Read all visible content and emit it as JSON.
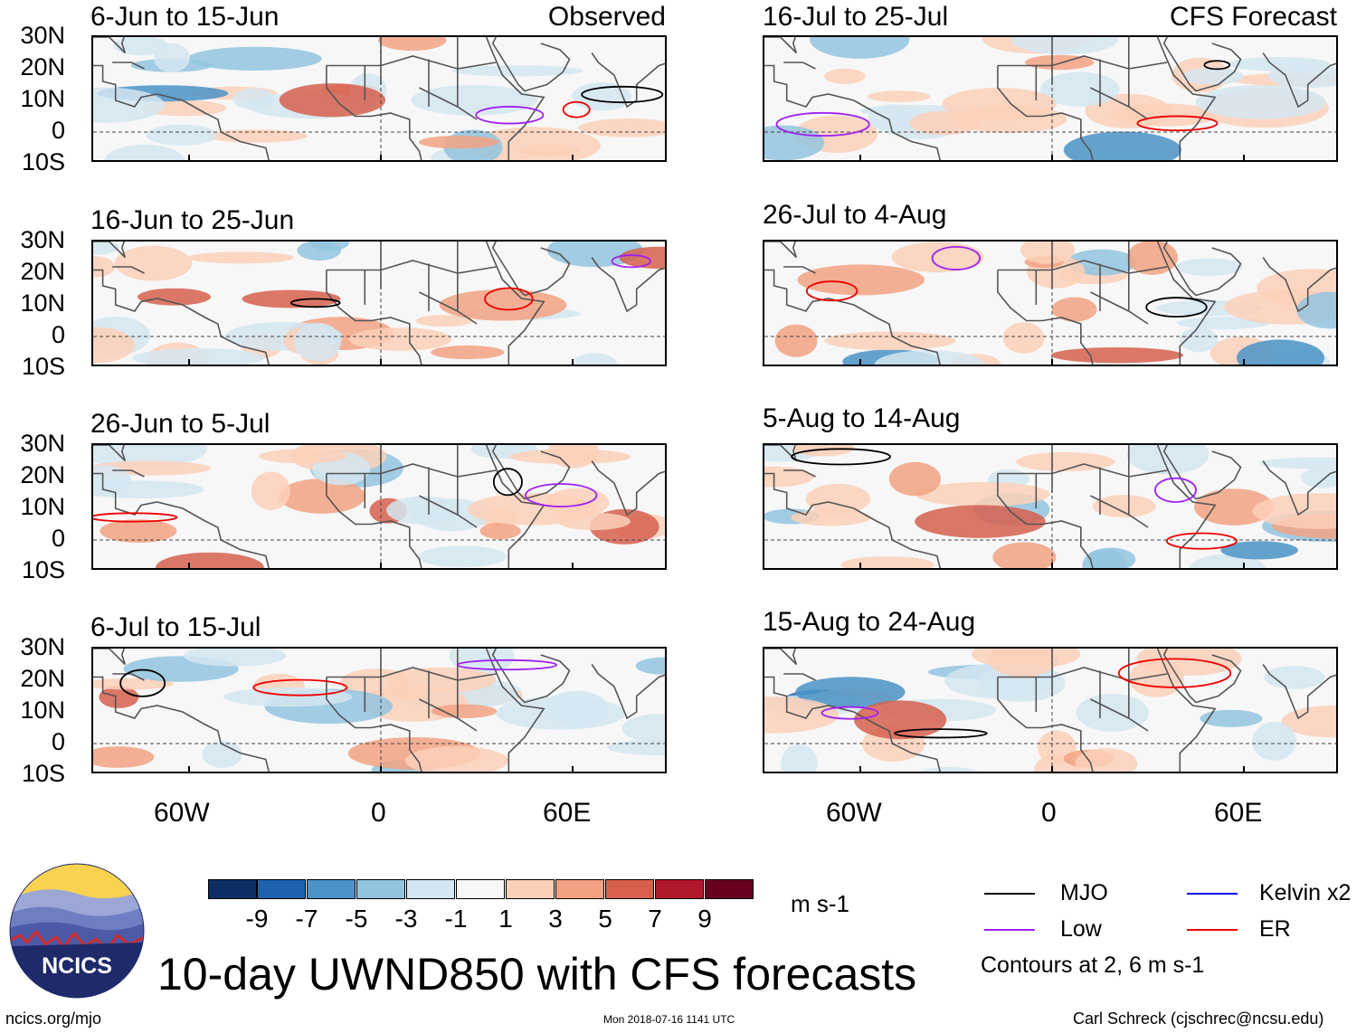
{
  "headers": {
    "left_tag": "Observed",
    "right_tag": "CFS Forecast"
  },
  "panels": {
    "observed": [
      "6-Jun to 15-Jun",
      "16-Jun to 25-Jun",
      "26-Jun to 5-Jul",
      "6-Jul to 15-Jul"
    ],
    "forecast": [
      "16-Jul to 25-Jul",
      "26-Jul to 4-Aug",
      "5-Aug to 14-Aug",
      "15-Aug to 24-Aug"
    ]
  },
  "axes": {
    "lat_labels": [
      "30N",
      "20N",
      "10N",
      "0",
      "10S"
    ],
    "lon_labels": [
      "60W",
      "0",
      "60E"
    ]
  },
  "colorbar": {
    "labels": [
      "-9",
      "-7",
      "-5",
      "-3",
      "-1",
      "1",
      "3",
      "5",
      "7",
      "9"
    ],
    "colors": [
      "#0b2f64",
      "#1e62ae",
      "#4a93c7",
      "#92c4df",
      "#d4e6f1",
      "#f7f7f7",
      "#fbd0b8",
      "#f2a283",
      "#d6604d",
      "#b2182b",
      "#67001f"
    ],
    "unit": "m s-1"
  },
  "legend": {
    "items": [
      {
        "label": "MJO",
        "color": "#000000"
      },
      {
        "label": "Kelvin x2",
        "color": "#0000ff"
      },
      {
        "label": "Low",
        "color": "#a020f0"
      },
      {
        "label": "ER",
        "color": "#ee0000"
      }
    ],
    "note": "Contours at 2, 6 m s-1"
  },
  "title": "10-day UWND850 with CFS forecasts",
  "logo_text": "NCICS",
  "footer": {
    "left": "ncics.org/mjo",
    "center": "Mon 2018-07-16 1141 UTC",
    "right": "Carl Schreck (cjschrec@ncsu.edu)"
  }
}
